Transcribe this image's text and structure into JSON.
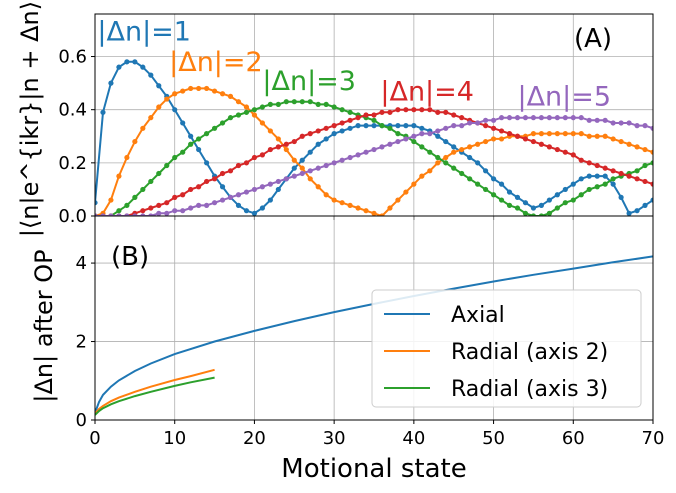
{
  "chart_data": [
    {
      "type": "line",
      "panel_label": "(A)",
      "ylabel": "|⟨n|e^{ikr}|n + Δn⟩|",
      "xlim": [
        0,
        70
      ],
      "ylim": [
        0,
        0.76
      ],
      "y_ticks": [
        "0.0",
        "0.2",
        "0.4",
        "0.6"
      ],
      "grid": true,
      "markers": "dots",
      "series": [
        {
          "name": "|Δn|=1",
          "color": "#1f77b4",
          "x": [
            0,
            1,
            2,
            3,
            4,
            5,
            6,
            7,
            8,
            9,
            10,
            11,
            12,
            13,
            14,
            15,
            16,
            17,
            18,
            19,
            20,
            21,
            22,
            23,
            24,
            25,
            26,
            27,
            28,
            29,
            30,
            31,
            32,
            33,
            34,
            35,
            36,
            37,
            38,
            39,
            40,
            41,
            42,
            43,
            44,
            45,
            46,
            47,
            48,
            49,
            50,
            51,
            52,
            53,
            54,
            55,
            56,
            57,
            58,
            59,
            60,
            61,
            62,
            63,
            64,
            65,
            66,
            67,
            68,
            69,
            70
          ],
          "y": [
            0.05,
            0.39,
            0.5,
            0.56,
            0.58,
            0.58,
            0.56,
            0.53,
            0.49,
            0.45,
            0.4,
            0.35,
            0.3,
            0.25,
            0.2,
            0.15,
            0.11,
            0.07,
            0.04,
            0.02,
            0.01,
            0.03,
            0.06,
            0.1,
            0.14,
            0.18,
            0.21,
            0.24,
            0.27,
            0.29,
            0.31,
            0.32,
            0.33,
            0.34,
            0.34,
            0.34,
            0.34,
            0.34,
            0.34,
            0.34,
            0.34,
            0.33,
            0.32,
            0.3,
            0.28,
            0.26,
            0.24,
            0.22,
            0.2,
            0.17,
            0.14,
            0.12,
            0.09,
            0.07,
            0.05,
            0.03,
            0.04,
            0.06,
            0.08,
            0.1,
            0.12,
            0.14,
            0.15,
            0.15,
            0.15,
            0.12,
            0.07,
            0.01,
            0.02,
            0.04,
            0.06
          ]
        },
        {
          "name": "|Δn|=2",
          "color": "#ff7f0e",
          "x": [
            0,
            1,
            2,
            3,
            4,
            5,
            6,
            7,
            8,
            9,
            10,
            11,
            12,
            13,
            14,
            15,
            16,
            17,
            18,
            19,
            20,
            21,
            22,
            23,
            24,
            25,
            26,
            27,
            28,
            29,
            30,
            31,
            32,
            33,
            34,
            35,
            36,
            37,
            38,
            39,
            40,
            41,
            42,
            43,
            44,
            45,
            46,
            47,
            48,
            49,
            50,
            51,
            52,
            53,
            54,
            55,
            56,
            57,
            58,
            59,
            60,
            61,
            62,
            63,
            64,
            65,
            66,
            67,
            68,
            69,
            70
          ],
          "y": [
            0.0,
            0.01,
            0.06,
            0.15,
            0.22,
            0.28,
            0.33,
            0.37,
            0.41,
            0.44,
            0.46,
            0.47,
            0.48,
            0.48,
            0.48,
            0.47,
            0.46,
            0.45,
            0.43,
            0.41,
            0.38,
            0.35,
            0.32,
            0.29,
            0.25,
            0.21,
            0.18,
            0.14,
            0.11,
            0.08,
            0.06,
            0.05,
            0.04,
            0.03,
            0.02,
            0.01,
            0.0,
            0.03,
            0.06,
            0.09,
            0.12,
            0.15,
            0.17,
            0.2,
            0.22,
            0.24,
            0.25,
            0.26,
            0.27,
            0.28,
            0.29,
            0.29,
            0.3,
            0.3,
            0.3,
            0.31,
            0.31,
            0.31,
            0.31,
            0.31,
            0.31,
            0.31,
            0.3,
            0.3,
            0.3,
            0.29,
            0.28,
            0.27,
            0.26,
            0.25,
            0.24
          ]
        },
        {
          "name": "|Δn|=3",
          "color": "#2ca02c",
          "x": [
            0,
            1,
            2,
            3,
            4,
            5,
            6,
            7,
            8,
            9,
            10,
            11,
            12,
            13,
            14,
            15,
            16,
            17,
            18,
            19,
            20,
            21,
            22,
            23,
            24,
            25,
            26,
            27,
            28,
            29,
            30,
            31,
            32,
            33,
            34,
            35,
            36,
            37,
            38,
            39,
            40,
            41,
            42,
            43,
            44,
            45,
            46,
            47,
            48,
            49,
            50,
            51,
            52,
            53,
            54,
            55,
            56,
            57,
            58,
            59,
            60,
            61,
            62,
            63,
            64,
            65,
            66,
            67,
            68,
            69,
            70
          ],
          "y": [
            0.0,
            0.0,
            0.0,
            0.02,
            0.04,
            0.07,
            0.1,
            0.13,
            0.16,
            0.19,
            0.22,
            0.24,
            0.27,
            0.29,
            0.31,
            0.33,
            0.35,
            0.37,
            0.38,
            0.39,
            0.4,
            0.41,
            0.42,
            0.42,
            0.43,
            0.43,
            0.43,
            0.43,
            0.42,
            0.42,
            0.41,
            0.4,
            0.39,
            0.38,
            0.37,
            0.36,
            0.34,
            0.33,
            0.31,
            0.3,
            0.28,
            0.26,
            0.24,
            0.22,
            0.2,
            0.18,
            0.16,
            0.14,
            0.12,
            0.1,
            0.08,
            0.06,
            0.04,
            0.03,
            0.01,
            0.0,
            0.0,
            0.01,
            0.03,
            0.05,
            0.06,
            0.08,
            0.1,
            0.11,
            0.12,
            0.14,
            0.15,
            0.16,
            0.17,
            0.19,
            0.2
          ]
        },
        {
          "name": "|Δn|=4",
          "color": "#d62728",
          "x": [
            0,
            1,
            2,
            3,
            4,
            5,
            6,
            7,
            8,
            9,
            10,
            11,
            12,
            13,
            14,
            15,
            16,
            17,
            18,
            19,
            20,
            21,
            22,
            23,
            24,
            25,
            26,
            27,
            28,
            29,
            30,
            31,
            32,
            33,
            34,
            35,
            36,
            37,
            38,
            39,
            40,
            41,
            42,
            43,
            44,
            45,
            46,
            47,
            48,
            49,
            50,
            51,
            52,
            53,
            54,
            55,
            56,
            57,
            58,
            59,
            60,
            61,
            62,
            63,
            64,
            65,
            66,
            67,
            68,
            69,
            70
          ],
          "y": [
            0.0,
            0.0,
            0.0,
            0.0,
            0.0,
            0.01,
            0.02,
            0.03,
            0.04,
            0.05,
            0.07,
            0.08,
            0.1,
            0.11,
            0.13,
            0.14,
            0.16,
            0.17,
            0.19,
            0.2,
            0.22,
            0.23,
            0.25,
            0.26,
            0.27,
            0.28,
            0.3,
            0.31,
            0.32,
            0.33,
            0.34,
            0.35,
            0.36,
            0.37,
            0.38,
            0.38,
            0.39,
            0.39,
            0.4,
            0.4,
            0.4,
            0.4,
            0.4,
            0.39,
            0.39,
            0.38,
            0.37,
            0.36,
            0.35,
            0.34,
            0.33,
            0.32,
            0.31,
            0.3,
            0.29,
            0.28,
            0.27,
            0.26,
            0.25,
            0.24,
            0.23,
            0.21,
            0.2,
            0.19,
            0.18,
            0.17,
            0.16,
            0.15,
            0.14,
            0.13,
            0.12
          ]
        },
        {
          "name": "|Δn|=5",
          "color": "#9467bd",
          "x": [
            0,
            1,
            2,
            3,
            4,
            5,
            6,
            7,
            8,
            9,
            10,
            11,
            12,
            13,
            14,
            15,
            16,
            17,
            18,
            19,
            20,
            21,
            22,
            23,
            24,
            25,
            26,
            27,
            28,
            29,
            30,
            31,
            32,
            33,
            34,
            35,
            36,
            37,
            38,
            39,
            40,
            41,
            42,
            43,
            44,
            45,
            46,
            47,
            48,
            49,
            50,
            51,
            52,
            53,
            54,
            55,
            56,
            57,
            58,
            59,
            60,
            61,
            62,
            63,
            64,
            65,
            66,
            67,
            68,
            69,
            70
          ],
          "y": [
            0.0,
            0.0,
            0.0,
            0.0,
            0.0,
            0.0,
            0.0,
            0.0,
            0.01,
            0.01,
            0.02,
            0.02,
            0.03,
            0.04,
            0.04,
            0.05,
            0.06,
            0.07,
            0.08,
            0.09,
            0.1,
            0.11,
            0.12,
            0.13,
            0.14,
            0.15,
            0.16,
            0.17,
            0.18,
            0.19,
            0.2,
            0.21,
            0.22,
            0.23,
            0.24,
            0.25,
            0.26,
            0.27,
            0.28,
            0.29,
            0.3,
            0.31,
            0.31,
            0.32,
            0.33,
            0.34,
            0.34,
            0.35,
            0.35,
            0.36,
            0.36,
            0.37,
            0.37,
            0.37,
            0.37,
            0.37,
            0.37,
            0.37,
            0.37,
            0.37,
            0.37,
            0.37,
            0.36,
            0.36,
            0.36,
            0.35,
            0.35,
            0.35,
            0.34,
            0.34,
            0.33
          ]
        }
      ],
      "annotations": [
        {
          "text": "|Δn|=1",
          "color": "#1f77b4",
          "x": 0.3,
          "y": 0.66
        },
        {
          "text": "|Δn|=2",
          "color": "#ff7f0e",
          "x": 9.3,
          "y": 0.545
        },
        {
          "text": "|Δn|=3",
          "color": "#2ca02c",
          "x": 21.0,
          "y": 0.475
        },
        {
          "text": "|Δn|=4",
          "color": "#d62728",
          "x": 35.8,
          "y": 0.435
        },
        {
          "text": "|Δn|=5",
          "color": "#9467bd",
          "x": 53.0,
          "y": 0.415
        }
      ]
    },
    {
      "type": "line",
      "panel_label": "(B)",
      "xlabel": "Motional state",
      "ylabel": "|Δn| after OP",
      "xlim": [
        0,
        70
      ],
      "ylim": [
        0,
        5.2
      ],
      "x_ticks": [
        "0",
        "10",
        "20",
        "30",
        "40",
        "50",
        "60",
        "70"
      ],
      "y_ticks": [
        "0",
        "2",
        "4"
      ],
      "grid": true,
      "legend_position": "lower-right",
      "series": [
        {
          "name": "Axial",
          "color": "#1f77b4",
          "x": [
            0,
            0.5,
            1,
            2,
            3,
            5,
            7,
            10,
            15,
            20,
            25,
            30,
            35,
            40,
            45,
            50,
            55,
            60,
            65,
            70
          ],
          "y": [
            0.18,
            0.46,
            0.64,
            0.85,
            1.01,
            1.25,
            1.44,
            1.68,
            2.0,
            2.27,
            2.52,
            2.75,
            2.96,
            3.16,
            3.35,
            3.53,
            3.7,
            3.86,
            4.02,
            4.17
          ]
        },
        {
          "name": "Radial (axis 2)",
          "color": "#ff7f0e",
          "x": [
            0,
            0.5,
            1,
            2,
            3,
            5,
            7,
            10,
            12,
            15
          ],
          "y": [
            0.16,
            0.28,
            0.36,
            0.48,
            0.57,
            0.72,
            0.85,
            1.02,
            1.12,
            1.28
          ]
        },
        {
          "name": "Radial (axis 3)",
          "color": "#2ca02c",
          "x": [
            0,
            0.5,
            1,
            2,
            3,
            5,
            7,
            10,
            12,
            15
          ],
          "y": [
            0.13,
            0.23,
            0.3,
            0.4,
            0.48,
            0.61,
            0.72,
            0.87,
            0.96,
            1.08
          ]
        }
      ]
    }
  ]
}
